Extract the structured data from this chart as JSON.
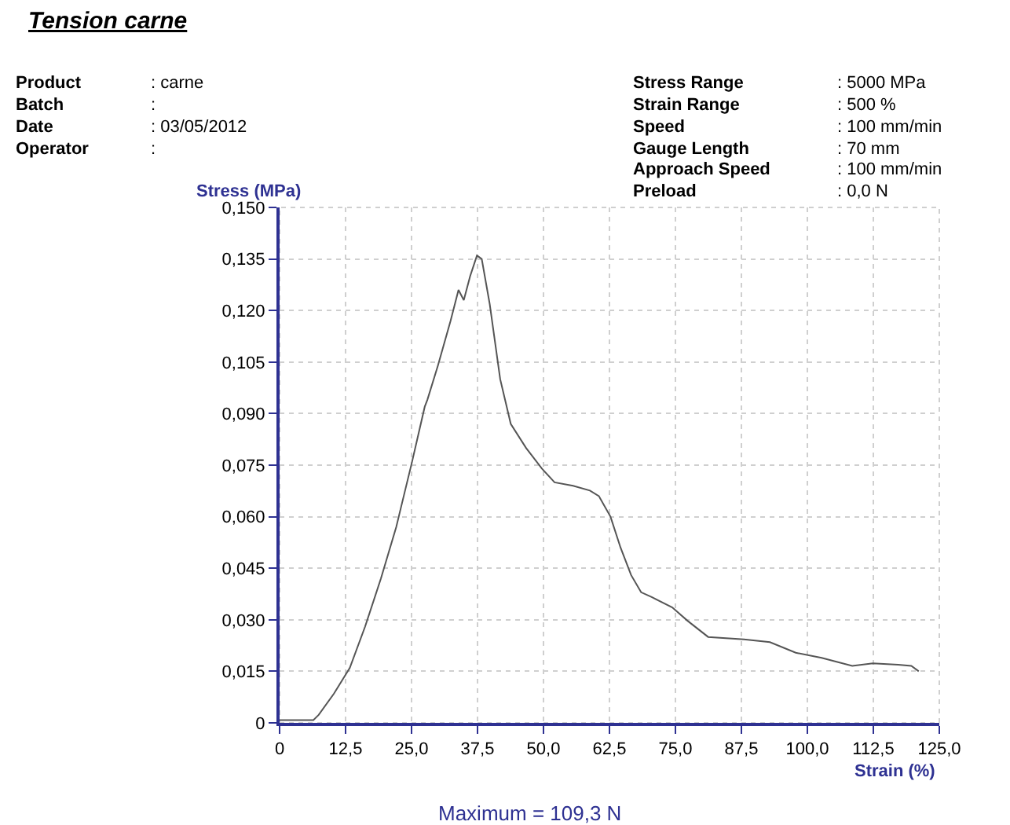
{
  "chart_data": {
    "type": "line",
    "title": "Tension carne",
    "xlabel": "Strain (%)",
    "ylabel": "Stress (MPa)",
    "annotations": [
      "Product",
      ": carne",
      "Batch",
      ":",
      "Date",
      ": 03/05/2012",
      "Operator",
      ":",
      "Stress Range",
      ": 5000 MPa",
      "Strain Range",
      ": 500 %",
      "Speed",
      ": 100 mm/min",
      "Gauge Length",
      ": 70 mm",
      "Approach Speed",
      ": 100 mm/min",
      "Preload",
      ": 0,0 N",
      "Maximum = 109,3 N"
    ],
    "series": [
      {
        "color": "#555555",
        "x": [
          0,
          6.4,
          7.4,
          10.3,
          13.3,
          16.2,
          19.2,
          22.1,
          25.1,
          27.5,
          28.0,
          30.0,
          32.4,
          33.9,
          34.9,
          36.1,
          37.4,
          38.3,
          39.8,
          41.8,
          43.8,
          46.7,
          49.7,
          52.1,
          55.6,
          58.8,
          60.5,
          62.7,
          64.6,
          66.6,
          68.5,
          70.5,
          74.4,
          77.3,
          81.2,
          88.0,
          92.9,
          97.8,
          102.7,
          108.5,
          112.4,
          117.2,
          119.7,
          121.1
        ],
        "values": [
          0.0008,
          0.0008,
          0.0023,
          0.0085,
          0.016,
          0.028,
          0.042,
          0.057,
          0.076,
          0.092,
          0.094,
          0.104,
          0.117,
          0.126,
          0.123,
          0.13,
          0.136,
          0.135,
          0.122,
          0.1,
          0.087,
          0.08,
          0.074,
          0.07,
          0.069,
          0.0676,
          0.066,
          0.06,
          0.051,
          0.043,
          0.038,
          0.0366,
          0.0336,
          0.0297,
          0.025,
          0.0243,
          0.0235,
          0.0204,
          0.0189,
          0.0166,
          0.0173,
          0.0169,
          0.0166,
          0.015
        ]
      }
    ],
    "xlim": [
      0,
      125
    ],
    "ylim": [
      0,
      0.15
    ],
    "xticks": [
      0,
      {
        "value": 12.5,
        "label": "12,5"
      },
      {
        "value": 25,
        "label": "25,0"
      },
      {
        "value": 37.5,
        "label": "37,5"
      },
      {
        "value": 50,
        "label": "50,0"
      },
      {
        "value": 62.5,
        "label": "62,5"
      },
      {
        "value": 75,
        "label": "75,0"
      },
      {
        "value": 87.5,
        "label": "87,5"
      },
      {
        "value": 100,
        "label": "100,0"
      },
      {
        "value": 112.5,
        "label": "112,5"
      },
      {
        "value": 125,
        "label": "125,0"
      }
    ],
    "yticks": [
      0,
      {
        "value": 0.015,
        "label": "0,015"
      },
      {
        "value": 0.03,
        "label": "0,030"
      },
      {
        "value": 0.045,
        "label": "0,045"
      },
      {
        "value": 0.06,
        "label": "0,060"
      },
      {
        "value": 0.075,
        "label": "0,075"
      },
      {
        "value": 0.09,
        "label": "0,090"
      },
      {
        "value": 0.105,
        "label": "0,105"
      },
      {
        "value": 0.12,
        "label": "0,120"
      },
      {
        "value": 0.135,
        "label": "0,135"
      },
      {
        "value": 0.15,
        "label": "0,150"
      }
    ],
    "grid": true,
    "marker": "none",
    "line_style": "solid"
  }
}
